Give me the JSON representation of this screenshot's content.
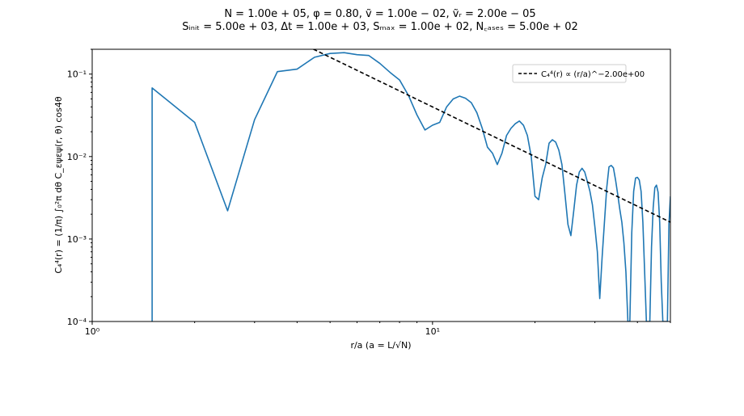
{
  "chart_data": {
    "type": "line",
    "title_lines": [
      "N = 1.00e + 05, φ = 0.80, ṽ = 1.00e − 02, ṽᵣ = 2.00e − 05",
      "Sᵢₙᵢₜ = 5.00e + 03, Δt = 1.00e + 03, Sₘₐₓ = 1.00e + 02, N꜀ₐₛₑₛ = 5.00e + 02"
    ],
    "xlabel": "r/a (a = L/√N)",
    "ylabel": "C₄⁴(r) = (1/π) ∫₀²π dθ C_εψεψ(r, θ) cos4θ",
    "xscale": "log",
    "yscale": "log",
    "xlim": [
      1,
      50
    ],
    "ylim": [
      0.0001,
      0.2
    ],
    "x_ticks": [
      {
        "value": 1,
        "label": "10⁰"
      },
      {
        "value": 10,
        "label": "10¹"
      }
    ],
    "y_ticks": [
      {
        "value": 0.0001,
        "label": "10⁻⁴"
      },
      {
        "value": 0.001,
        "label": "10⁻³"
      },
      {
        "value": 0.01,
        "label": "10⁻²"
      },
      {
        "value": 0.1,
        "label": "10⁻¹"
      }
    ],
    "grid": false,
    "legend": {
      "position": "top-right",
      "entries": [
        "C₄⁴(r) ∝ (r/a)^−2.00e+00"
      ]
    },
    "colors": {
      "series": "#1f77b4",
      "fit": "#000000"
    },
    "series": [
      {
        "style": "solid",
        "x": [
          1.5,
          1.5,
          2.0,
          2.5,
          3.0,
          3.5,
          4.0,
          4.5,
          5.0,
          5.5,
          6.0,
          6.5,
          7.0,
          7.5,
          8.0,
          8.5,
          9.0,
          9.5,
          10.0,
          10.5,
          11.0,
          11.5,
          12.0,
          12.5,
          13.0,
          13.5,
          14.0,
          14.5,
          15.0,
          15.5,
          16.0,
          16.5,
          17.0,
          17.5,
          18.0,
          18.5,
          19.0,
          19.5,
          20.0,
          20.5,
          21.0,
          21.5,
          22.0,
          22.5,
          23.0,
          23.5,
          24.0,
          24.5,
          25.0,
          25.5,
          26.0,
          26.5,
          27.0,
          27.5,
          28.0,
          28.5,
          29.0,
          29.5,
          30.0,
          30.5,
          31.0,
          31.5,
          32.0,
          32.5,
          33.0,
          33.5,
          34.0,
          34.5,
          35.0,
          35.5,
          36.0,
          36.5,
          37.0,
          37.5,
          38.0,
          38.5,
          39.0,
          39.5,
          40.0,
          40.5,
          41.0,
          41.5,
          42.0,
          42.5,
          43.0,
          43.5,
          44.0,
          44.5,
          45.0,
          45.5,
          46.0,
          46.5,
          47.0,
          47.5,
          48.0,
          48.5,
          49.0,
          49.5,
          50.0
        ],
        "y": [
          0.0001,
          0.068,
          0.026,
          0.0022,
          0.028,
          0.107,
          0.115,
          0.16,
          0.178,
          0.182,
          0.172,
          0.168,
          0.135,
          0.105,
          0.085,
          0.055,
          0.032,
          0.021,
          0.024,
          0.026,
          0.04,
          0.05,
          0.054,
          0.051,
          0.045,
          0.034,
          0.022,
          0.013,
          0.011,
          0.008,
          0.011,
          0.018,
          0.022,
          0.025,
          0.027,
          0.024,
          0.018,
          0.01,
          0.0033,
          0.003,
          0.0055,
          0.008,
          0.0145,
          0.016,
          0.015,
          0.012,
          0.008,
          0.0035,
          0.0015,
          0.0011,
          0.0022,
          0.0045,
          0.0065,
          0.0072,
          0.0065,
          0.005,
          0.0038,
          0.0026,
          0.0014,
          0.0007,
          0.00019,
          0.0006,
          0.0016,
          0.0042,
          0.0075,
          0.0078,
          0.0073,
          0.0052,
          0.0035,
          0.0023,
          0.0016,
          0.0009,
          0.0004,
          0.0001,
          0.0001,
          0.0012,
          0.0038,
          0.0055,
          0.0056,
          0.0052,
          0.0038,
          0.0016,
          0.0004,
          0.0001,
          0.0001,
          0.0001,
          0.0008,
          0.0024,
          0.0042,
          0.0045,
          0.0037,
          0.0016,
          0.0003,
          0.0001,
          0.0001,
          0.0001,
          0.0001,
          0.0015,
          0.0033
        ]
      },
      {
        "name": "C₄⁴(r) ∝ (r/a)^−2.00e+00",
        "style": "dashed",
        "x": [
          1,
          50
        ],
        "y": [
          4.0,
          0.0016
        ]
      }
    ]
  }
}
